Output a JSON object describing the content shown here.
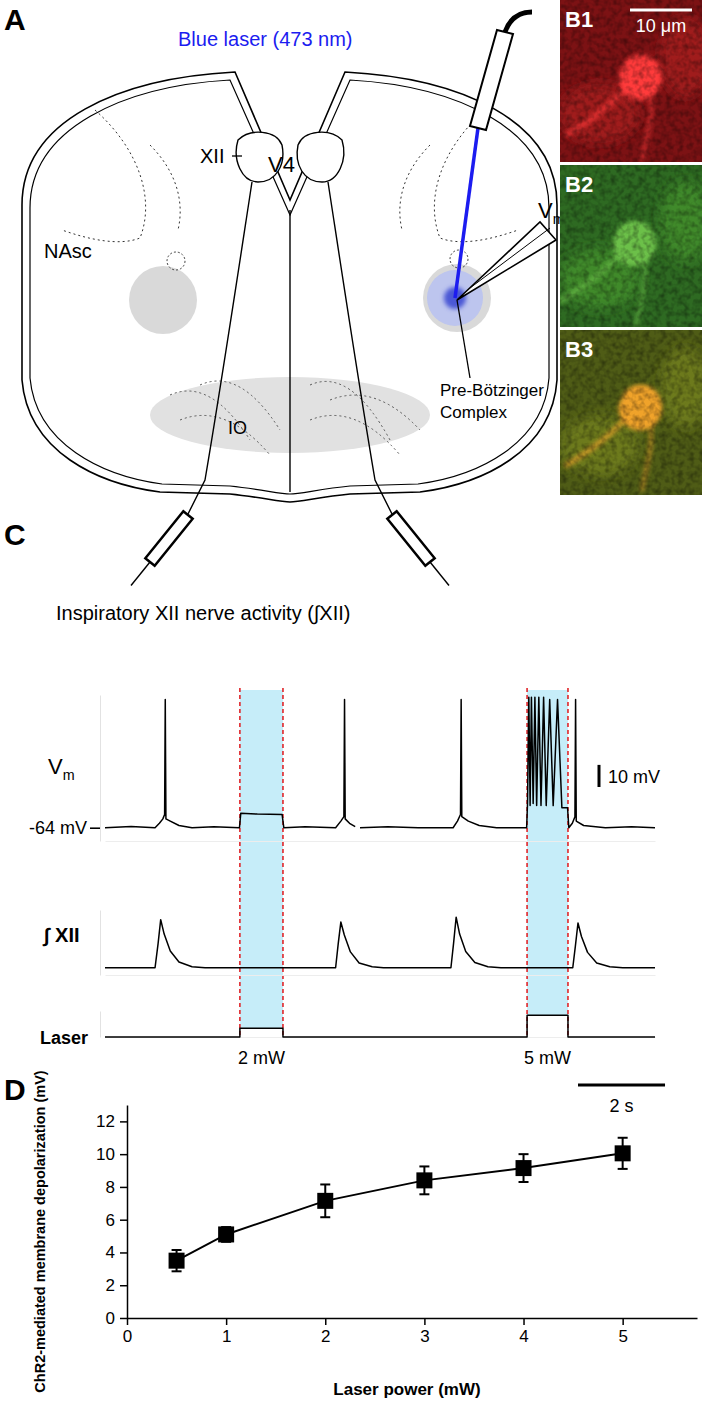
{
  "panels": {
    "A": {
      "label": "A",
      "laser": "Blue laser (473 nm)",
      "v4": "V4",
      "xii": "XII",
      "nasc": "NAsc",
      "io": "IO",
      "prebot": [
        "Pre-Bötzinger",
        "Complex"
      ],
      "vm": "Vm",
      "nerve": "Inspiratory XII nerve activity (∫XII)"
    },
    "B": {
      "labels": [
        "B1",
        "B2",
        "B3"
      ],
      "scale_bar": "10 μm"
    },
    "C": {
      "label": "C"
    },
    "D": {
      "label": "D"
    }
  },
  "chart_data": [
    {
      "type": "line",
      "title": "Vm",
      "color": "#000000",
      "x": [
        0,
        0.6,
        1.15,
        1.25,
        1.33,
        1.37,
        1.385,
        1.4,
        1.5,
        1.7,
        2.0,
        2.5,
        3.09,
        3.12,
        3.5,
        4.07,
        4.11,
        4.6,
        5.3,
        5.42,
        5.49,
        5.505,
        5.52,
        5.62,
        5.75,
        5.8,
        5.86,
        6.5,
        7.2,
        8.0,
        8.1,
        8.17,
        8.185,
        8.2,
        8.35,
        8.6,
        9.0,
        9.69,
        9.71,
        9.74,
        9.77,
        9.8,
        9.84,
        9.88,
        9.92,
        9.97,
        10.02,
        10.08,
        10.14,
        10.22,
        10.3,
        10.4,
        10.5,
        10.63,
        10.66,
        10.74,
        10.8,
        10.815,
        10.83,
        11.0,
        11.5,
        12.1,
        12.64
      ],
      "values": [
        -64,
        -63.5,
        -64,
        -62,
        -60,
        -58,
        -6,
        -60,
        -61,
        -63,
        -64,
        -63.6,
        -64,
        -57.5,
        -57.8,
        -58,
        -64,
        -63.6,
        -64,
        -61,
        -59,
        -6,
        -60,
        -62,
        -63.5,
        null,
        -64,
        -63.6,
        -64,
        -64,
        -61,
        -58,
        -6,
        -59,
        -61,
        -63,
        -64,
        -64,
        -53,
        -5,
        -54,
        -5,
        -53,
        -5,
        -54,
        -5,
        -54,
        -5,
        -54,
        -6,
        -54,
        -6,
        -55,
        -55,
        -64,
        -62,
        -59,
        -6,
        -61,
        -63,
        -64,
        -63.6,
        -64
      ],
      "xlim": [
        0,
        12.64
      ],
      "ylim": [
        -70,
        -4
      ],
      "xticks": [],
      "yticks": [
        {
          "value": -64,
          "label": "-64 mV"
        }
      ],
      "scale_bar": {
        "value": 10,
        "label": "10 mV"
      }
    },
    {
      "type": "line",
      "title": "∫ XII",
      "color": "#000000",
      "x": [
        0,
        1.15,
        1.22,
        1.28,
        1.36,
        1.5,
        1.7,
        2.0,
        2.3,
        5.3,
        5.36,
        5.42,
        5.5,
        5.64,
        5.84,
        6.14,
        6.4,
        7.95,
        8.01,
        8.07,
        8.15,
        8.29,
        8.5,
        8.8,
        9.1,
        10.75,
        10.81,
        10.87,
        10.95,
        11.09,
        11.3,
        11.6,
        11.9,
        12.64
      ],
      "values": [
        0,
        0,
        0.5,
        1.0,
        0.7,
        0.35,
        0.12,
        0.02,
        0,
        0,
        0.5,
        0.95,
        0.68,
        0.33,
        0.1,
        0.02,
        0,
        0,
        0.5,
        1.05,
        0.7,
        0.34,
        0.11,
        0.02,
        0,
        0,
        0.45,
        0.93,
        0.65,
        0.32,
        0.1,
        0.02,
        0,
        0
      ],
      "xlim": [
        0,
        12.64
      ],
      "ylim": [
        -0.15,
        1.2
      ],
      "xticks": [],
      "yticks": []
    },
    {
      "type": "line",
      "title": "Laser",
      "color": "#000000",
      "x": [
        0,
        3.1,
        3.1,
        4.09,
        4.09,
        9.7,
        9.7,
        10.64,
        10.64,
        12.64
      ],
      "values": [
        0,
        0,
        2,
        2,
        0,
        0,
        5,
        5,
        0,
        0
      ],
      "xlim": [
        0,
        12.64
      ],
      "ylim": [
        0,
        6
      ],
      "xticks": [],
      "yticks": [],
      "annotations": [
        "2 mW",
        "5 mW"
      ],
      "scale_bar": {
        "value": 2,
        "label": "2 s"
      }
    },
    {
      "type": "line",
      "marker": "square",
      "color": "#000000",
      "x": [
        0.5,
        1,
        2,
        3,
        4,
        5
      ],
      "values": [
        3.5,
        5.1,
        7.15,
        8.4,
        9.15,
        10.05
      ],
      "errors": [
        0.65,
        0.45,
        1.0,
        0.85,
        0.85,
        0.95
      ],
      "xlim": [
        0,
        5.75
      ],
      "ylim": [
        0,
        13
      ],
      "xticks": [
        0,
        1,
        2,
        3,
        4,
        5
      ],
      "yticks": [
        0,
        2,
        4,
        6,
        8,
        10,
        12
      ],
      "xlabel": "Laser power (mW)",
      "ylabel": "ChR2-mediated membrane depolarization (mV)"
    }
  ]
}
